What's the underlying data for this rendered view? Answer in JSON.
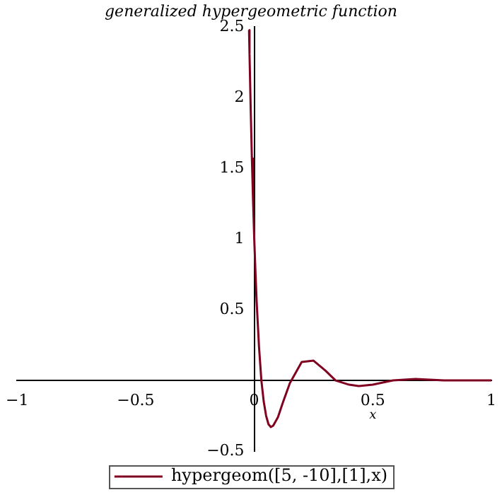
{
  "chart_data": {
    "type": "line",
    "title": "generalized hypergeometric function",
    "xlabel": "x",
    "x": [
      -0.022,
      -0.02,
      -0.015,
      -0.01,
      -0.005,
      0,
      0.005,
      0.01,
      0.02,
      0.03,
      0.04,
      0.05,
      0.06,
      0.07,
      0.08,
      0.1,
      0.12,
      0.15,
      0.2,
      0.25,
      0.3,
      0.343,
      0.4,
      0.44,
      0.5,
      0.585,
      0.68,
      0.8,
      0.9,
      1
    ],
    "series": [
      {
        "name": "hypergeom([5, -10],[1],x)",
        "color": "#800020",
        "values": [
          2.48,
          2.31,
          1.92,
          1.57,
          1.27,
          1,
          0.77,
          0.56,
          0.24,
          0,
          -0.15,
          -0.25,
          -0.31,
          -0.33,
          -0.32,
          -0.26,
          -0.16,
          -0.02,
          0.13,
          0.14,
          0.07,
          0,
          -0.03,
          -0.04,
          -0.03,
          0,
          0.01,
          0,
          0,
          0
        ]
      }
    ],
    "xlim": [
      -1,
      1
    ],
    "ylim": [
      -0.5,
      2.5
    ],
    "xticks": [
      -1,
      -0.5,
      0,
      0.5,
      1
    ],
    "yticks": [
      -0.5,
      0.5,
      1,
      1.5,
      2,
      2.5
    ],
    "grid": false,
    "legend": "bottom",
    "marker": "none",
    "line_style": "solid"
  }
}
